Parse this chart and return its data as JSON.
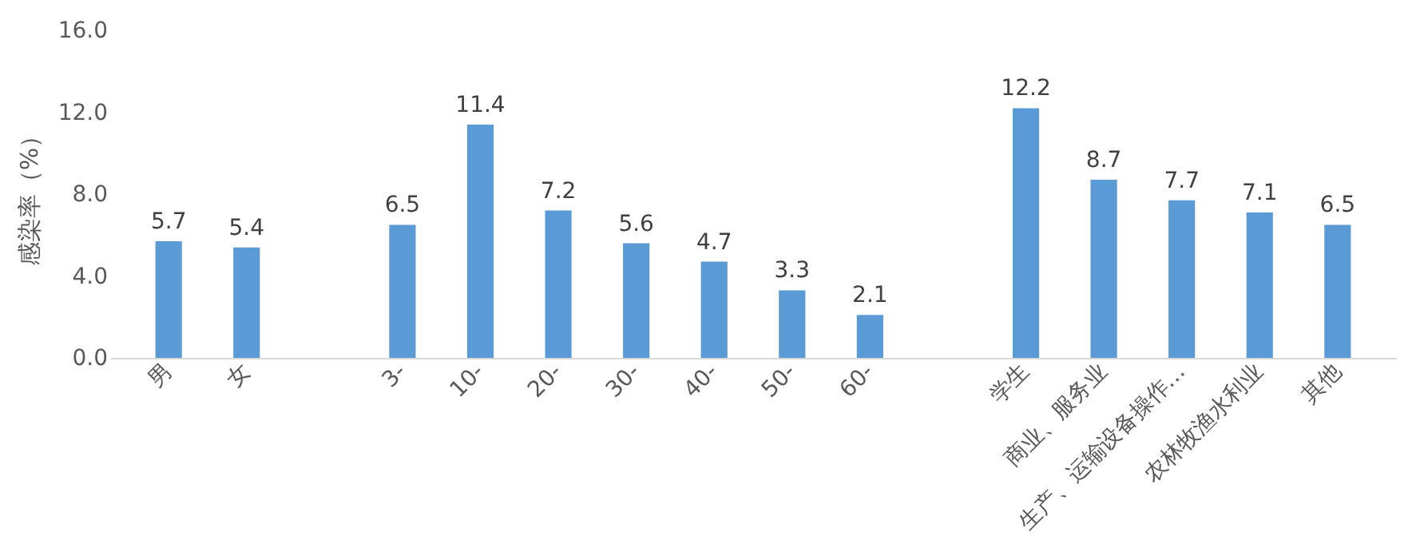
{
  "chart_data": {
    "type": "bar",
    "ylabel": "感染率（%）",
    "categories": [
      "男",
      "女",
      null,
      "3-",
      "10-",
      "20-",
      "30-",
      "40-",
      "50-",
      "60-",
      null,
      "学生",
      "商业、服务业",
      "生产、运输设备操作…",
      "农林牧渔水利业",
      "其他"
    ],
    "values": [
      5.7,
      5.4,
      null,
      6.5,
      11.4,
      7.2,
      5.6,
      4.7,
      3.3,
      2.1,
      null,
      12.2,
      8.7,
      7.7,
      7.1,
      6.5
    ],
    "color": "#5b9bd5",
    "ylim": [
      0,
      16
    ],
    "yticks": [
      {
        "value": 0,
        "label": "0.0"
      },
      {
        "value": 4,
        "label": "4.0"
      },
      {
        "value": 8,
        "label": "8.0"
      },
      {
        "value": 12,
        "label": "12.0"
      },
      {
        "value": 16,
        "label": "16.0"
      }
    ],
    "grid": false,
    "data_labels": true
  }
}
